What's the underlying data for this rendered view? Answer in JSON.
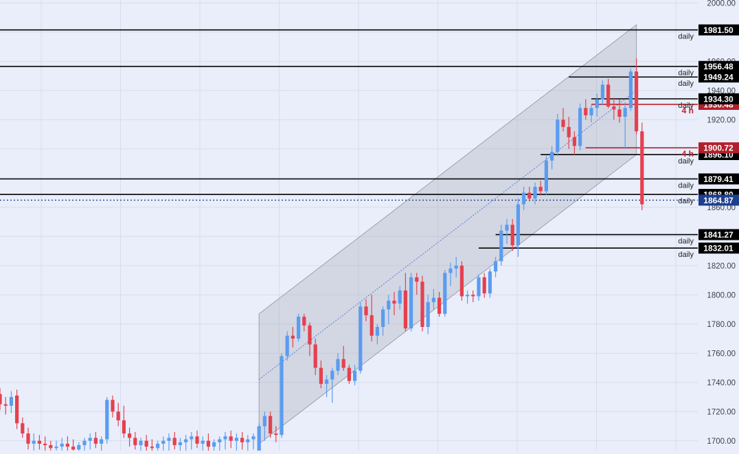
{
  "chart_data": {
    "type": "candlestick",
    "ylim": [
      1695,
      2002
    ],
    "y_ticks": [
      "1700.00",
      "1720.00",
      "1740.00",
      "1760.00",
      "1780.00",
      "1800.00",
      "1820.00",
      "1840.00",
      "1860.00",
      "1880.00",
      "1900.00",
      "1920.00",
      "1940.00",
      "1960.00",
      "1980.00",
      "2000.00"
    ],
    "colors": {
      "up": "#5b9cf0",
      "down": "#e5404f",
      "background": "#e9eefa",
      "grid": "#d6dcec",
      "channel": "#9aa0ae"
    },
    "candles": [
      [
        1732,
        1736,
        1721,
        1725
      ],
      [
        1725,
        1730,
        1718,
        1724
      ],
      [
        1724,
        1734,
        1719,
        1730
      ],
      [
        1731,
        1735,
        1708,
        1712
      ],
      [
        1712,
        1716,
        1702,
        1705
      ],
      [
        1705,
        1709,
        1694,
        1698
      ],
      [
        1698,
        1705,
        1692,
        1700
      ],
      [
        1700,
        1704,
        1694,
        1698
      ],
      [
        1698,
        1703,
        1693,
        1697
      ],
      [
        1697,
        1700,
        1690,
        1695
      ],
      [
        1695,
        1700,
        1688,
        1696
      ],
      [
        1696,
        1702,
        1690,
        1698
      ],
      [
        1698,
        1703,
        1692,
        1696
      ],
      [
        1696,
        1701,
        1690,
        1694
      ],
      [
        1694,
        1699,
        1689,
        1697
      ],
      [
        1697,
        1702,
        1692,
        1700
      ],
      [
        1700,
        1705,
        1694,
        1702
      ],
      [
        1702,
        1706,
        1695,
        1698
      ],
      [
        1698,
        1703,
        1692,
        1701
      ],
      [
        1701,
        1730,
        1698,
        1728
      ],
      [
        1728,
        1731,
        1716,
        1720
      ],
      [
        1720,
        1726,
        1710,
        1714
      ],
      [
        1714,
        1724,
        1702,
        1705
      ],
      [
        1705,
        1709,
        1696,
        1702
      ],
      [
        1702,
        1706,
        1694,
        1697
      ],
      [
        1697,
        1702,
        1690,
        1700
      ],
      [
        1700,
        1704,
        1692,
        1696
      ],
      [
        1696,
        1701,
        1690,
        1695
      ],
      [
        1695,
        1700,
        1688,
        1698
      ],
      [
        1698,
        1703,
        1691,
        1700
      ],
      [
        1700,
        1705,
        1693,
        1702
      ],
      [
        1702,
        1706,
        1694,
        1697
      ],
      [
        1697,
        1702,
        1690,
        1699
      ],
      [
        1699,
        1704,
        1692,
        1701
      ],
      [
        1701,
        1706,
        1694,
        1703
      ],
      [
        1703,
        1707,
        1695,
        1698
      ],
      [
        1698,
        1703,
        1691,
        1700
      ],
      [
        1700,
        1705,
        1692,
        1696
      ],
      [
        1696,
        1701,
        1690,
        1699
      ],
      [
        1699,
        1703,
        1692,
        1701
      ],
      [
        1701,
        1706,
        1694,
        1703
      ],
      [
        1703,
        1707,
        1695,
        1700
      ],
      [
        1700,
        1705,
        1693,
        1702
      ],
      [
        1702,
        1706,
        1694,
        1699
      ],
      [
        1699,
        1704,
        1692,
        1701
      ],
      [
        1701,
        1705,
        1694,
        1703
      ],
      [
        1692,
        1712,
        1690,
        1710
      ],
      [
        1710,
        1720,
        1700,
        1717
      ],
      [
        1717,
        1720,
        1702,
        1705
      ],
      [
        1705,
        1710,
        1699,
        1704
      ],
      [
        1704,
        1760,
        1702,
        1758
      ],
      [
        1758,
        1775,
        1755,
        1772
      ],
      [
        1772,
        1778,
        1764,
        1770
      ],
      [
        1770,
        1787,
        1768,
        1785
      ],
      [
        1785,
        1787,
        1775,
        1779
      ],
      [
        1779,
        1781,
        1758,
        1766
      ],
      [
        1766,
        1770,
        1745,
        1750
      ],
      [
        1750,
        1755,
        1736,
        1739
      ],
      [
        1739,
        1745,
        1730,
        1742
      ],
      [
        1742,
        1750,
        1726,
        1748
      ],
      [
        1748,
        1760,
        1745,
        1756
      ],
      [
        1756,
        1765,
        1748,
        1750
      ],
      [
        1750,
        1752,
        1739,
        1741
      ],
      [
        1741,
        1752,
        1738,
        1748
      ],
      [
        1748,
        1795,
        1746,
        1792
      ],
      [
        1792,
        1797,
        1782,
        1786
      ],
      [
        1786,
        1800,
        1768,
        1772
      ],
      [
        1772,
        1780,
        1766,
        1778
      ],
      [
        1778,
        1792,
        1772,
        1790
      ],
      [
        1790,
        1800,
        1780,
        1796
      ],
      [
        1796,
        1802,
        1786,
        1794
      ],
      [
        1794,
        1806,
        1790,
        1803
      ],
      [
        1803,
        1815,
        1775,
        1777
      ],
      [
        1777,
        1815,
        1775,
        1812
      ],
      [
        1812,
        1815,
        1800,
        1809
      ],
      [
        1809,
        1813,
        1775,
        1778
      ],
      [
        1778,
        1800,
        1773,
        1795
      ],
      [
        1795,
        1804,
        1790,
        1798
      ],
      [
        1798,
        1802,
        1785,
        1787
      ],
      [
        1787,
        1817,
        1785,
        1815
      ],
      [
        1815,
        1822,
        1806,
        1818
      ],
      [
        1818,
        1826,
        1812,
        1820
      ],
      [
        1820,
        1823,
        1796,
        1799
      ],
      [
        1799,
        1803,
        1794,
        1800
      ],
      [
        1800,
        1803,
        1795,
        1799
      ],
      [
        1799,
        1814,
        1796,
        1812
      ],
      [
        1812,
        1815,
        1798,
        1801
      ],
      [
        1801,
        1818,
        1798,
        1816
      ],
      [
        1816,
        1826,
        1812,
        1823
      ],
      [
        1823,
        1848,
        1820,
        1844
      ],
      [
        1844,
        1852,
        1835,
        1848
      ],
      [
        1848,
        1852,
        1830,
        1834
      ],
      [
        1834,
        1866,
        1826,
        1862
      ],
      [
        1862,
        1874,
        1858,
        1870
      ],
      [
        1870,
        1874,
        1864,
        1866
      ],
      [
        1866,
        1877,
        1862,
        1874
      ],
      [
        1874,
        1878,
        1868,
        1871
      ],
      [
        1871,
        1895,
        1868,
        1892
      ],
      [
        1892,
        1902,
        1886,
        1898
      ],
      [
        1898,
        1924,
        1895,
        1920
      ],
      [
        1920,
        1928,
        1912,
        1915
      ],
      [
        1915,
        1922,
        1900,
        1908
      ],
      [
        1908,
        1912,
        1896,
        1902
      ],
      [
        1902,
        1931,
        1899,
        1928
      ],
      [
        1928,
        1934,
        1920,
        1923
      ],
      [
        1923,
        1930,
        1918,
        1928
      ],
      [
        1928,
        1938,
        1922,
        1934
      ],
      [
        1934,
        1947,
        1930,
        1944
      ],
      [
        1944,
        1948,
        1928,
        1929
      ],
      [
        1929,
        1935,
        1920,
        1927
      ],
      [
        1927,
        1934,
        1918,
        1922
      ],
      [
        1922,
        1932,
        1900,
        1928
      ],
      [
        1928,
        1955,
        1926,
        1953
      ],
      [
        1953,
        1962,
        1910,
        1912
      ],
      [
        1912,
        1918,
        1858,
        1862
      ]
    ],
    "channel": {
      "upper": [
        [
          46,
          1787
        ],
        [
          113,
          1985
        ]
      ],
      "lower": [
        [
          46,
          1698
        ],
        [
          113,
          1896
        ]
      ],
      "midline": [
        [
          46,
          1742
        ],
        [
          113,
          1940
        ]
      ]
    },
    "levels": [
      {
        "price": 1981.5,
        "label": "1981.50",
        "tag": "daily",
        "start": 0,
        "color": "#000000"
      },
      {
        "price": 1956.48,
        "label": "1956.48",
        "tag": "daily",
        "start": 0,
        "color": "#000000"
      },
      {
        "price": 1949.24,
        "label": "1949.24",
        "tag": "daily",
        "start": 101,
        "color": "#000000"
      },
      {
        "price": 1934.3,
        "label": "1934.30",
        "tag": "daily",
        "start": 105,
        "color": "#000000"
      },
      {
        "price": 1930.48,
        "label": "1930.48",
        "tag": "4 h",
        "start": 105,
        "color": "#c0202e"
      },
      {
        "price": 1900.72,
        "label": "1900.72",
        "tag": "4 h",
        "start": 104,
        "color": "#c0202e"
      },
      {
        "price": 1896.1,
        "label": "1896.10",
        "tag": "daily",
        "start": 96,
        "color": "#000000"
      },
      {
        "price": 1879.41,
        "label": "1879.41",
        "tag": "daily",
        "start": 0,
        "color": "#000000"
      },
      {
        "price": 1868.8,
        "label": "1868.80",
        "tag": "daily",
        "start": 0,
        "color": "#000000"
      },
      {
        "price": 1841.27,
        "label": "1841.27",
        "tag": "daily",
        "start": 88,
        "color": "#000000"
      },
      {
        "price": 1832.01,
        "label": "1832.01",
        "tag": "daily",
        "start": 85,
        "color": "#000000"
      }
    ],
    "last_price": {
      "price": 1864.87,
      "label": "1864.87",
      "color": "#1e3f8f"
    }
  }
}
